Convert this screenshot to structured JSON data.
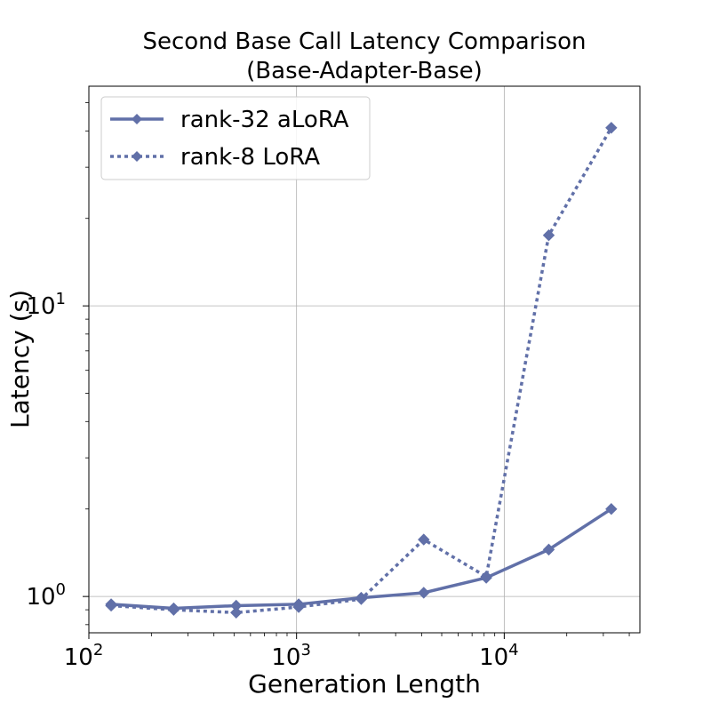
{
  "chart_data": {
    "type": "line",
    "title": "Second Base Call Latency Comparison",
    "subtitle": "(Base-Adapter-Base)",
    "xlabel": "Generation Length",
    "ylabel": "Latency (s)",
    "x_scale": "log",
    "y_scale": "log",
    "xlim": [
      100,
      45000
    ],
    "ylim": [
      0.75,
      57
    ],
    "x_ticks": [
      {
        "base": "10",
        "exp": "2",
        "value": 100
      },
      {
        "base": "10",
        "exp": "3",
        "value": 1000
      },
      {
        "base": "10",
        "exp": "4",
        "value": 10000
      }
    ],
    "y_ticks": [
      {
        "base": "10",
        "exp": "0",
        "value": 1
      },
      {
        "base": "10",
        "exp": "1",
        "value": 10
      }
    ],
    "grid": true,
    "legend_position": "top-left",
    "color": "#6170a8",
    "x": [
      128,
      256,
      512,
      1024,
      2048,
      4096,
      8192,
      16384,
      32768
    ],
    "series": [
      {
        "name": "rank-32 aLoRA",
        "style": "solid",
        "marker": "diamond",
        "values": [
          0.94,
          0.91,
          0.93,
          0.94,
          0.99,
          1.03,
          1.16,
          1.45,
          2.0
        ]
      },
      {
        "name": "rank-8 LoRA",
        "style": "dotted",
        "marker": "diamond",
        "values": [
          0.93,
          0.9,
          0.88,
          0.92,
          0.98,
          1.57,
          1.17,
          17.5,
          41.0
        ]
      }
    ]
  }
}
